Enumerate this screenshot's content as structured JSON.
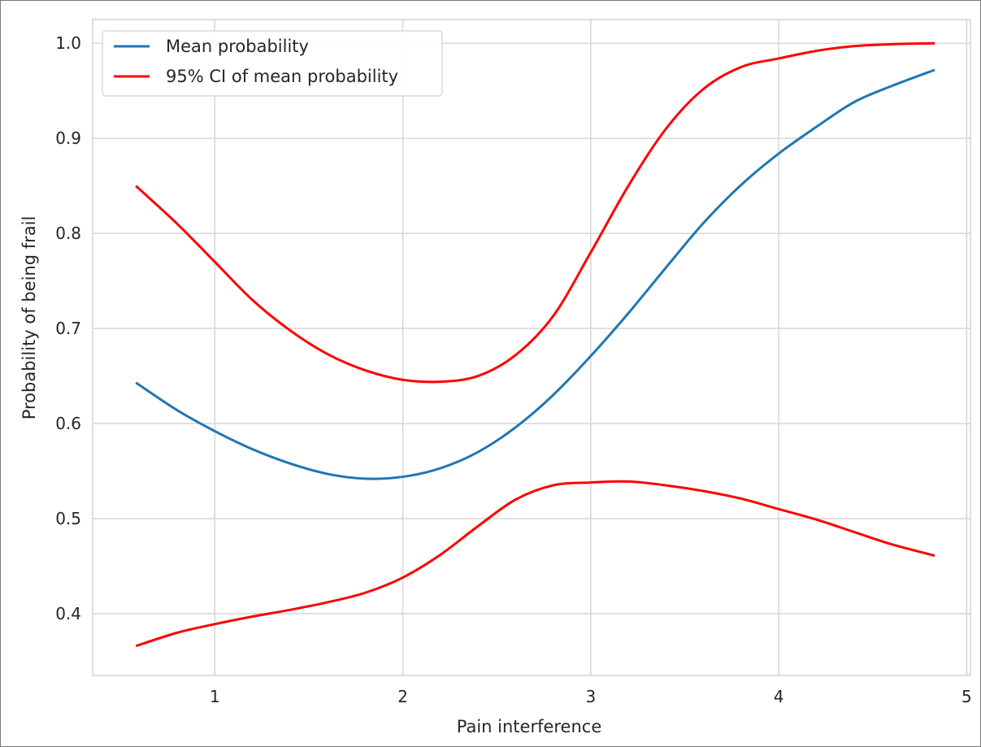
{
  "chart_data": {
    "type": "line",
    "xlabel": "Pain interference",
    "ylabel": "Probability of being frail",
    "xlim": [
      0.35,
      5.02
    ],
    "ylim": [
      0.335,
      1.025
    ],
    "xticks": [
      1,
      2,
      3,
      4,
      5
    ],
    "xtick_labels": [
      "1",
      "2",
      "3",
      "4",
      "5"
    ],
    "yticks": [
      0.4,
      0.5,
      0.6,
      0.7,
      0.8,
      0.9,
      1.0
    ],
    "ytick_labels": [
      "0.4",
      "0.5",
      "0.6",
      "0.7",
      "0.8",
      "0.9",
      "1.0"
    ],
    "grid": true,
    "legend_position": "top-left",
    "legend": [
      {
        "label": "Mean probability",
        "color": "#1f77b4"
      },
      {
        "label": "95% CI of mean probability",
        "color": "#ff0000"
      }
    ],
    "series": [
      {
        "name": "Mean probability",
        "color": "#1f77b4",
        "x": [
          0.58,
          0.8,
          1.0,
          1.2,
          1.4,
          1.6,
          1.8,
          2.0,
          2.2,
          2.4,
          2.6,
          2.8,
          3.0,
          3.2,
          3.4,
          3.6,
          3.8,
          4.0,
          4.2,
          4.4,
          4.6,
          4.83
        ],
        "y": [
          0.643,
          0.614,
          0.592,
          0.573,
          0.558,
          0.547,
          0.542,
          0.544,
          0.553,
          0.57,
          0.596,
          0.63,
          0.671,
          0.716,
          0.764,
          0.811,
          0.851,
          0.884,
          0.912,
          0.938,
          0.955,
          0.972
        ]
      },
      {
        "name": "95% CI of mean probability",
        "color": "#ff0000",
        "x": [
          0.58,
          0.8,
          1.0,
          1.2,
          1.4,
          1.6,
          1.8,
          2.0,
          2.2,
          2.4,
          2.6,
          2.8,
          3.0,
          3.2,
          3.4,
          3.6,
          3.8,
          4.0,
          4.2,
          4.4,
          4.6,
          4.83
        ],
        "y": [
          0.85,
          0.81,
          0.77,
          0.73,
          0.698,
          0.673,
          0.656,
          0.646,
          0.644,
          0.65,
          0.672,
          0.713,
          0.78,
          0.85,
          0.91,
          0.952,
          0.975,
          0.984,
          0.992,
          0.997,
          0.999,
          1.0
        ]
      },
      {
        "name": "95% CI of mean probability",
        "color": "#ff0000",
        "x": [
          0.58,
          0.8,
          1.0,
          1.2,
          1.4,
          1.6,
          1.8,
          2.0,
          2.2,
          2.4,
          2.6,
          2.8,
          3.0,
          3.2,
          3.4,
          3.6,
          3.8,
          4.0,
          4.2,
          4.4,
          4.6,
          4.83
        ],
        "y": [
          0.366,
          0.38,
          0.389,
          0.397,
          0.404,
          0.412,
          0.422,
          0.438,
          0.462,
          0.492,
          0.52,
          0.535,
          0.538,
          0.539,
          0.535,
          0.529,
          0.521,
          0.51,
          0.499,
          0.486,
          0.473,
          0.461
        ]
      }
    ]
  }
}
